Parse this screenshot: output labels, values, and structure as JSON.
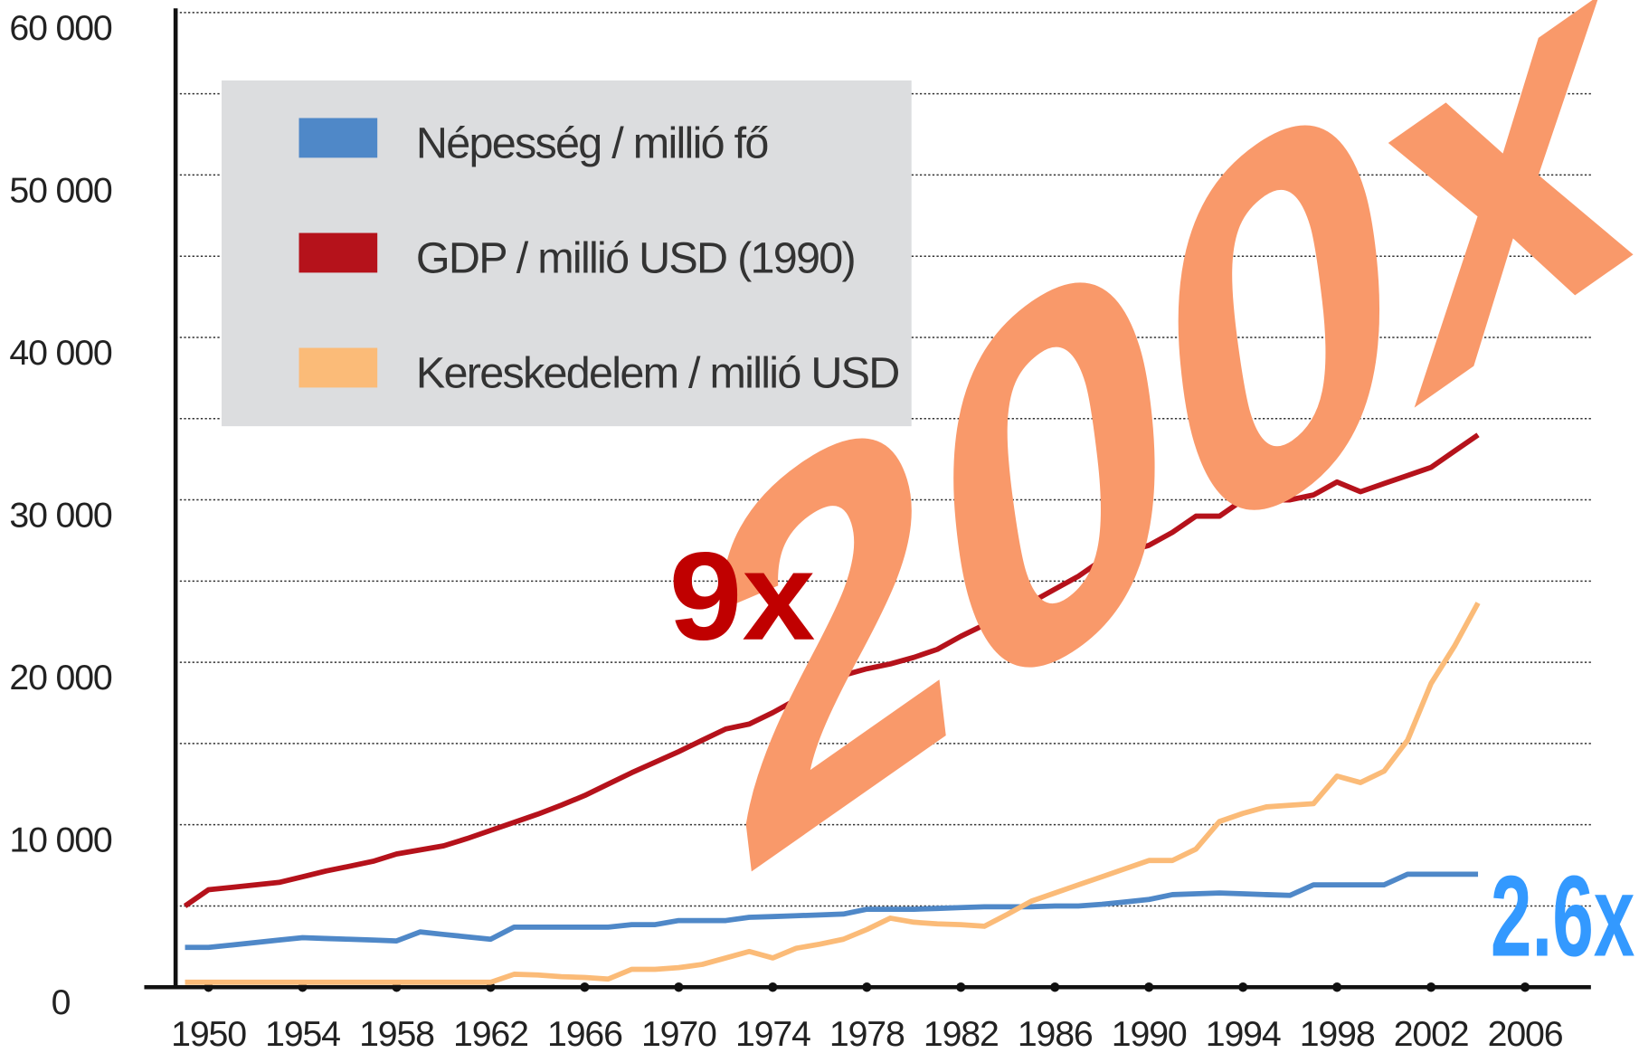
{
  "chart_data": {
    "type": "line",
    "x": [
      1949,
      1950,
      1951,
      1952,
      1953,
      1954,
      1955,
      1956,
      1957,
      1958,
      1959,
      1960,
      1961,
      1962,
      1963,
      1964,
      1965,
      1966,
      1967,
      1968,
      1969,
      1970,
      1971,
      1972,
      1973,
      1974,
      1975,
      1976,
      1977,
      1978,
      1979,
      1980,
      1981,
      1982,
      1983,
      1984,
      1985,
      1986,
      1987,
      1988,
      1989,
      1990,
      1991,
      1992,
      1993,
      1994,
      1995,
      1996,
      1997,
      1998,
      1999,
      2000,
      2001,
      2002,
      2003,
      2004
    ],
    "series": [
      {
        "name": "Népesség / millió fő",
        "color": "#4f88c8",
        "values": [
          2450,
          2450,
          2600,
          2750,
          2900,
          3050,
          3000,
          2950,
          2900,
          2850,
          3400,
          3250,
          3100,
          2950,
          3700,
          3700,
          3700,
          3700,
          3700,
          3850,
          3850,
          4100,
          4100,
          4100,
          4300,
          4350,
          4400,
          4450,
          4500,
          4800,
          4800,
          4800,
          4850,
          4900,
          4950,
          4950,
          4950,
          5000,
          5000,
          5100,
          5250,
          5400,
          5700,
          5750,
          5800,
          5750,
          5700,
          5650,
          6300,
          6300,
          6300,
          6300,
          6950,
          6950,
          6950,
          6950
        ]
      },
      {
        "name": "GDP / millió USD (1990)",
        "color": "#b5121b",
        "values": [
          5000,
          6000,
          6150,
          6300,
          6450,
          6800,
          7150,
          7450,
          7750,
          8200,
          8450,
          8700,
          9150,
          9650,
          10150,
          10650,
          11200,
          11800,
          12500,
          13200,
          13850,
          14500,
          15200,
          15900,
          16200,
          16900,
          17700,
          18500,
          19200,
          19600,
          19900,
          20300,
          20800,
          21600,
          22300,
          23000,
          23700,
          24500,
          25300,
          26300,
          26800,
          27200,
          28000,
          29000,
          29000,
          30000,
          30000,
          30000,
          30300,
          31100,
          30500,
          31000,
          31500,
          32000,
          33000,
          34000
        ]
      },
      {
        "name": "Kereskedelem / millió USD",
        "color": "#fbbb78",
        "values": [
          300,
          300,
          300,
          300,
          300,
          300,
          300,
          300,
          300,
          300,
          300,
          300,
          300,
          300,
          800,
          750,
          650,
          600,
          500,
          1100,
          1100,
          1200,
          1400,
          1800,
          2200,
          1800,
          2400,
          2650,
          2950,
          3550,
          4250,
          4000,
          3900,
          3850,
          3750,
          4500,
          5300,
          5800,
          6300,
          6800,
          7300,
          7800,
          7800,
          8500,
          10200,
          10700,
          11100,
          11200,
          11300,
          13000,
          12600,
          13300,
          15200,
          18700,
          21000,
          23650
        ]
      }
    ],
    "xlim": [
      1948.6,
      2008.8
    ],
    "xticks": [
      1950,
      1954,
      1958,
      1962,
      1966,
      1970,
      1974,
      1978,
      1982,
      1986,
      1990,
      1994,
      1998,
      2002,
      2006
    ],
    "ylim": [
      0,
      60000
    ],
    "yticks": [
      0,
      {
        "value": 10000,
        "label": "10 000"
      },
      {
        "value": 20000,
        "label": "20 000"
      },
      {
        "value": 30000,
        "label": "30 000"
      },
      {
        "value": 40000,
        "label": "40 000"
      },
      {
        "value": 50000,
        "label": "50 000"
      },
      {
        "value": 60000,
        "label": "60 000"
      }
    ],
    "minor_yticks": [
      5000,
      15000,
      25000,
      35000,
      45000,
      55000
    ],
    "grid": true,
    "legend": "top-left",
    "annotations": [
      {
        "text": "9x",
        "color": "#c00000"
      },
      {
        "text": "200x",
        "color": "#f9996a"
      },
      {
        "text": "2.6x",
        "color": "#3399ff"
      }
    ]
  }
}
